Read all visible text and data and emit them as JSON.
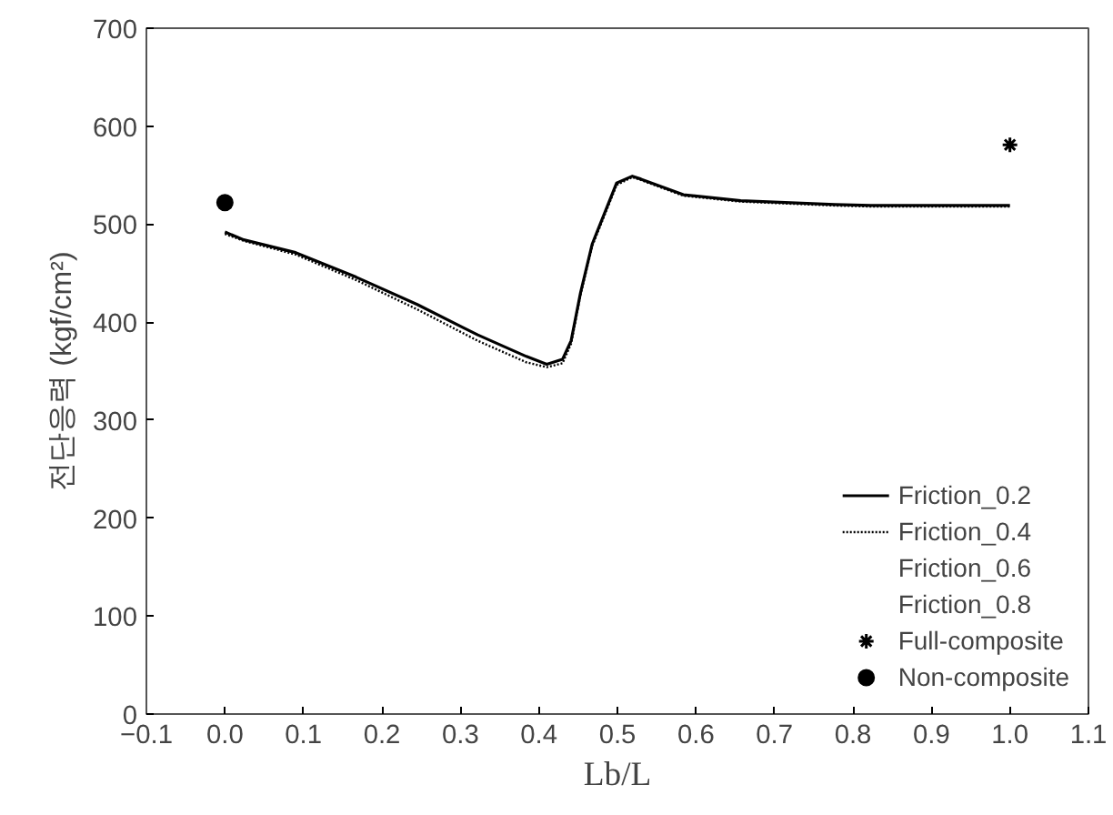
{
  "chart_data": {
    "type": "line",
    "xlabel": "Lb/L",
    "ylabel": "전단응력 (kgf/cm²)",
    "xlim": [
      -0.1,
      1.1
    ],
    "xticks": [
      {
        "value": -0.1,
        "label": "−0.1"
      },
      {
        "value": 0,
        "label": "0.0"
      },
      0.1,
      0.2,
      0.3,
      0.4,
      0.5,
      0.6,
      0.7,
      0.8,
      0.9,
      {
        "value": 1,
        "label": "1.0"
      },
      1.1
    ],
    "ylim": [
      0,
      700
    ],
    "yticks": [
      0,
      100,
      200,
      300,
      400,
      500,
      600,
      700
    ],
    "grid": false,
    "legend": "bottom right",
    "series": [
      {
        "name": "Friction_0.2",
        "color": "#000000",
        "line_style": "solid",
        "x": [
          0.0,
          0.024,
          0.09,
          0.167,
          0.245,
          0.322,
          0.384,
          0.41,
          0.43,
          0.441,
          0.453,
          0.468,
          0.499,
          0.519,
          0.53,
          0.584,
          0.657,
          0.777,
          0.823,
          1.0
        ],
        "values": [
          492,
          484,
          471,
          446,
          418,
          387,
          365,
          357,
          362,
          381,
          430,
          480,
          542,
          549,
          546,
          530,
          524,
          520,
          519,
          519
        ]
      },
      {
        "name": "Friction_0.4",
        "color": "#000000",
        "line_style": "dotted",
        "x": [
          0.0,
          0.024,
          0.09,
          0.167,
          0.245,
          0.322,
          0.384,
          0.41,
          0.43,
          0.441,
          0.453,
          0.468,
          0.499,
          0.519,
          0.53,
          0.584,
          0.657,
          0.777,
          0.823,
          1.0
        ],
        "values": [
          490,
          483,
          469,
          443,
          413,
          381,
          359,
          354,
          358,
          378,
          428,
          478,
          540,
          548,
          545,
          529,
          523,
          519,
          518,
          518
        ]
      },
      {
        "name": "Friction_0.6"
      },
      {
        "name": "Friction_0.8"
      },
      {
        "name": "Full-composite",
        "type": "scatter",
        "marker": "cross",
        "color": "#000000",
        "x": [
          1.0
        ],
        "values": [
          581
        ]
      },
      {
        "name": "Non-composite",
        "type": "scatter",
        "marker": "circle",
        "color": "#000000",
        "x": [
          0.0
        ],
        "values": [
          522
        ]
      }
    ]
  }
}
